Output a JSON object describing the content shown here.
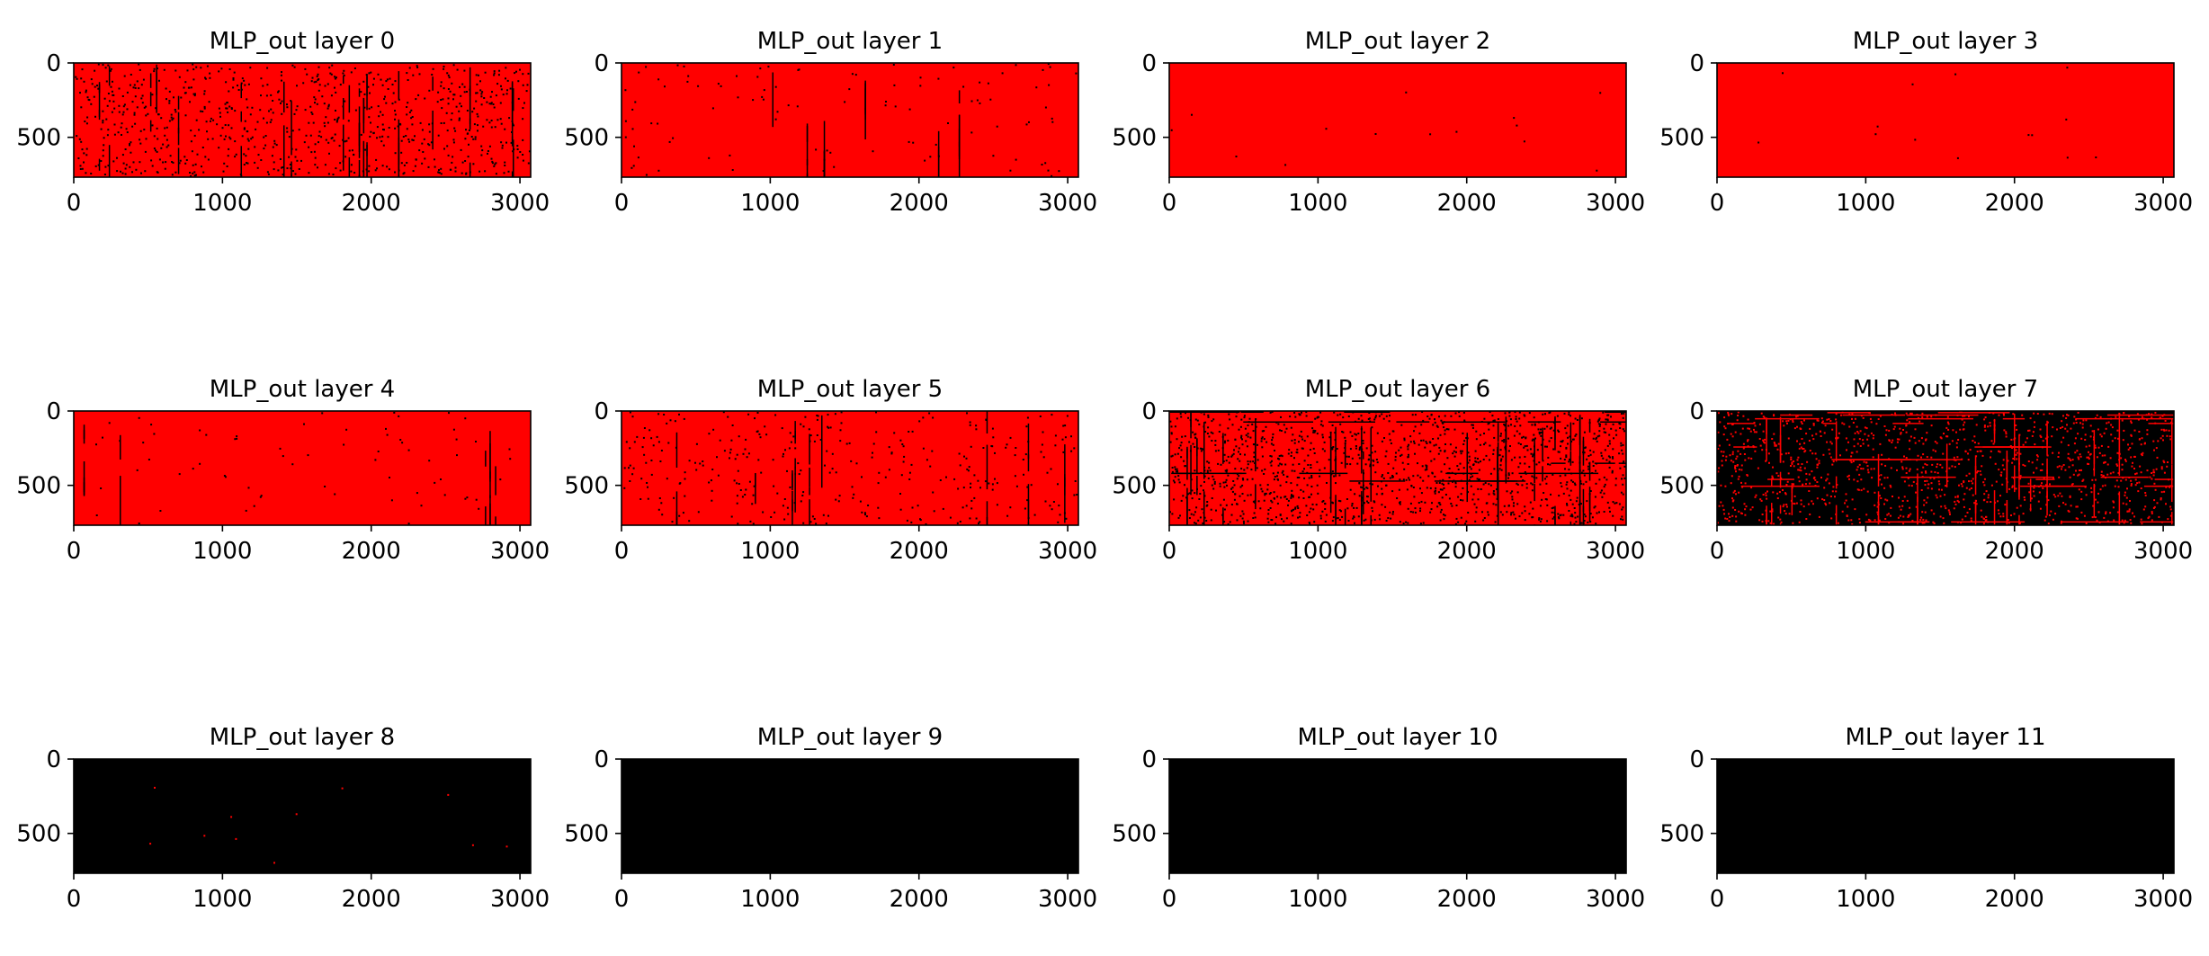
{
  "chart_data": [
    {
      "type": "heatmap",
      "title": "MLP_out layer 0",
      "xlim": [
        0,
        3072
      ],
      "ylim": [
        768,
        0
      ],
      "xticks": [
        0,
        1000,
        2000,
        3000
      ],
      "yticks": [
        0,
        500
      ],
      "base_color": "#ff0000",
      "dot_color": "#000000",
      "dot_fraction": 0.12,
      "column_streak_fraction": 0.06,
      "row_streak_fraction": 0.0
    },
    {
      "type": "heatmap",
      "title": "MLP_out layer 1",
      "xlim": [
        0,
        3072
      ],
      "ylim": [
        768,
        0
      ],
      "xticks": [
        0,
        1000,
        2000,
        3000
      ],
      "yticks": [
        0,
        500
      ],
      "base_color": "#ff0000",
      "dot_color": "#000000",
      "dot_fraction": 0.015,
      "column_streak_fraction": 0.02,
      "row_streak_fraction": 0.0
    },
    {
      "type": "heatmap",
      "title": "MLP_out layer 2",
      "xlim": [
        0,
        3072
      ],
      "ylim": [
        768,
        0
      ],
      "xticks": [
        0,
        1000,
        2000,
        3000
      ],
      "yticks": [
        0,
        500
      ],
      "base_color": "#ff0000",
      "dot_color": "#000000",
      "dot_fraction": 0.002,
      "column_streak_fraction": 0.0,
      "row_streak_fraction": 0.0
    },
    {
      "type": "heatmap",
      "title": "MLP_out layer 3",
      "xlim": [
        0,
        3072
      ],
      "ylim": [
        768,
        0
      ],
      "xticks": [
        0,
        1000,
        2000,
        3000
      ],
      "yticks": [
        0,
        500
      ],
      "base_color": "#ff0000",
      "dot_color": "#000000",
      "dot_fraction": 0.002,
      "column_streak_fraction": 0.0,
      "row_streak_fraction": 0.0
    },
    {
      "type": "heatmap",
      "title": "MLP_out layer 4",
      "xlim": [
        0,
        3072
      ],
      "ylim": [
        768,
        0
      ],
      "xticks": [
        0,
        1000,
        2000,
        3000
      ],
      "yticks": [
        0,
        500
      ],
      "base_color": "#ff0000",
      "dot_color": "#000000",
      "dot_fraction": 0.01,
      "column_streak_fraction": 0.015,
      "row_streak_fraction": 0.0
    },
    {
      "type": "heatmap",
      "title": "MLP_out layer 5",
      "xlim": [
        0,
        3072
      ],
      "ylim": [
        768,
        0
      ],
      "xticks": [
        0,
        1000,
        2000,
        3000
      ],
      "yticks": [
        0,
        500
      ],
      "base_color": "#ff0000",
      "dot_color": "#000000",
      "dot_fraction": 0.05,
      "column_streak_fraction": 0.03,
      "row_streak_fraction": 0.0
    },
    {
      "type": "heatmap",
      "title": "MLP_out layer 6",
      "xlim": [
        0,
        3072
      ],
      "ylim": [
        768,
        0
      ],
      "xticks": [
        0,
        1000,
        2000,
        3000
      ],
      "yticks": [
        0,
        500
      ],
      "base_color": "#ff0000",
      "dot_color": "#000000",
      "dot_fraction": 0.2,
      "column_streak_fraction": 0.08,
      "row_streak_fraction": 0.03
    },
    {
      "type": "heatmap",
      "title": "MLP_out layer 7",
      "xlim": [
        0,
        3072
      ],
      "ylim": [
        768,
        0
      ],
      "xticks": [
        0,
        1000,
        2000,
        3000
      ],
      "yticks": [
        0,
        500
      ],
      "base_color": "#000000",
      "dot_color": "#ff0000",
      "dot_fraction": 0.18,
      "column_streak_fraction": 0.06,
      "row_streak_fraction": 0.05
    },
    {
      "type": "heatmap",
      "title": "MLP_out layer 8",
      "xlim": [
        0,
        3072
      ],
      "ylim": [
        768,
        0
      ],
      "xticks": [
        0,
        1000,
        2000,
        3000
      ],
      "yticks": [
        0,
        500
      ],
      "base_color": "#000000",
      "dot_color": "#ff0000",
      "dot_fraction": 0.0015,
      "column_streak_fraction": 0.0,
      "row_streak_fraction": 0.0
    },
    {
      "type": "heatmap",
      "title": "MLP_out layer 9",
      "xlim": [
        0,
        3072
      ],
      "ylim": [
        768,
        0
      ],
      "xticks": [
        0,
        1000,
        2000,
        3000
      ],
      "yticks": [
        0,
        500
      ],
      "base_color": "#000000",
      "dot_color": "#ff0000",
      "dot_fraction": 0.0,
      "column_streak_fraction": 0.0,
      "row_streak_fraction": 0.0
    },
    {
      "type": "heatmap",
      "title": "MLP_out layer 10",
      "xlim": [
        0,
        3072
      ],
      "ylim": [
        768,
        0
      ],
      "xticks": [
        0,
        1000,
        2000,
        3000
      ],
      "yticks": [
        0,
        500
      ],
      "base_color": "#000000",
      "dot_color": "#ff0000",
      "dot_fraction": 0.0,
      "column_streak_fraction": 0.0,
      "row_streak_fraction": 0.0
    },
    {
      "type": "heatmap",
      "title": "MLP_out layer 11",
      "xlim": [
        0,
        3072
      ],
      "ylim": [
        768,
        0
      ],
      "xticks": [
        0,
        1000,
        2000,
        3000
      ],
      "yticks": [
        0,
        500
      ],
      "base_color": "#000000",
      "dot_color": "#ff0000",
      "dot_fraction": 0.0,
      "column_streak_fraction": 0.0,
      "row_streak_fraction": 0.0
    }
  ]
}
